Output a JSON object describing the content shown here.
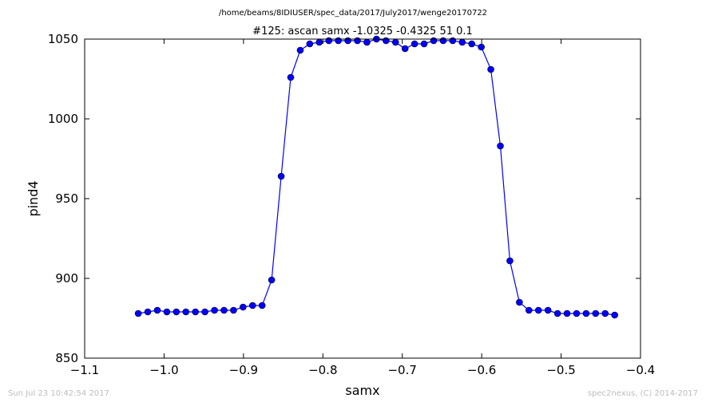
{
  "chart_data": {
    "type": "line",
    "file_path": "/home/beams/8IDIUSER/spec_data/2017/July2017/wenge20170722",
    "title": "#125: ascan  samx -1.0325 -0.4325  51 0.1",
    "xlabel": "samx",
    "ylabel": "pind4",
    "xlim": [
      -1.1,
      -0.4
    ],
    "ylim": [
      850,
      1050
    ],
    "x_ticks": [
      -1.1,
      -1.0,
      -0.9,
      -0.8,
      -0.7,
      -0.6,
      -0.5,
      -0.4
    ],
    "x_tick_labels": [
      "−1.1",
      "−1.0",
      "−0.9",
      "−0.8",
      "−0.7",
      "−0.6",
      "−0.5",
      "−0.4"
    ],
    "y_ticks": [
      850,
      900,
      950,
      1000,
      1050
    ],
    "y_tick_labels": [
      "850",
      "900",
      "950",
      "1000",
      "1050"
    ],
    "grid": false,
    "line_color": "#0000ff",
    "marker_color": "#0000ff",
    "series": [
      {
        "x": [
          -1.0325,
          -1.0205,
          -1.0085,
          -0.9965,
          -0.9845,
          -0.9725,
          -0.9605,
          -0.9485,
          -0.9365,
          -0.9245,
          -0.9125,
          -0.9005,
          -0.8885,
          -0.8765,
          -0.8645,
          -0.8525,
          -0.8405,
          -0.8285,
          -0.8165,
          -0.8045,
          -0.7925,
          -0.7805,
          -0.7685,
          -0.7565,
          -0.7445,
          -0.7325,
          -0.7205,
          -0.7085,
          -0.6965,
          -0.6845,
          -0.6725,
          -0.6605,
          -0.6485,
          -0.6365,
          -0.6245,
          -0.6125,
          -0.6005,
          -0.5885,
          -0.5765,
          -0.5645,
          -0.5525,
          -0.5405,
          -0.5285,
          -0.5165,
          -0.5045,
          -0.4925,
          -0.4805,
          -0.4685,
          -0.4565,
          -0.4445,
          -0.4325
        ],
        "y": [
          878,
          879,
          880,
          879,
          879,
          879,
          879,
          879,
          880,
          880,
          880,
          882,
          883,
          883,
          899,
          964,
          1026,
          1043,
          1047,
          1048,
          1049,
          1049,
          1049,
          1049,
          1048,
          1050,
          1049,
          1048,
          1044,
          1047,
          1047,
          1049,
          1049,
          1049,
          1048,
          1047,
          1045,
          1031,
          983,
          911,
          885,
          880,
          880,
          880,
          878,
          878,
          878,
          878,
          878,
          878,
          877
        ]
      }
    ]
  },
  "footer": {
    "timestamp": "Sun Jul 23 10:42:54 2017",
    "credit": "spec2nexus, (C) 2014-2017"
  }
}
